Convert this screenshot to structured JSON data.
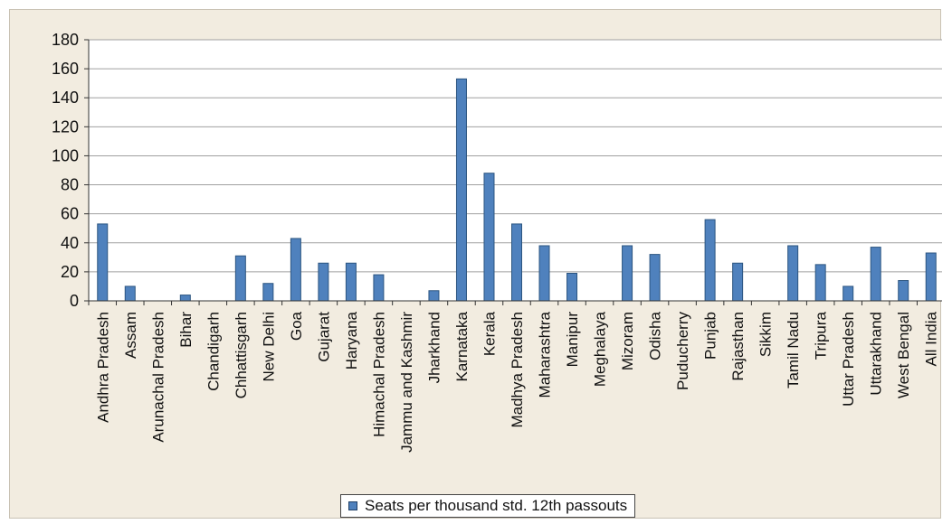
{
  "colors": {
    "bar_fill": "#4f81bd",
    "bar_stroke": "#2c5580",
    "plot_background": "#ffffff",
    "chart_background": "#f2ece0",
    "gridline": "#a0a0a0",
    "axis": "#333333"
  },
  "chart_data": {
    "type": "bar",
    "title": "",
    "xlabel": "",
    "ylabel": "",
    "ylim": [
      0,
      180
    ],
    "yticks": [
      0,
      20,
      40,
      60,
      80,
      100,
      120,
      140,
      160,
      180
    ],
    "grid": true,
    "legend_position": "bottom",
    "categories": [
      "Andhra Pradesh",
      "Assam",
      "Arunachal Pradesh",
      "Bihar",
      "Chandigarh",
      "Chhattisgarh",
      "New Delhi",
      "Goa",
      "Gujarat",
      "Haryana",
      "Himachal Pradesh",
      "Jammu and Kashmir",
      "Jharkhand",
      "Karnataka",
      "Kerala",
      "Madhya Pradesh",
      "Maharashtra",
      "Manipur",
      "Meghalaya",
      "Mizoram",
      "Odisha",
      "Puducherry",
      "Punjab",
      "Rajasthan",
      "Sikkim",
      "Tamil Nadu",
      "Tripura",
      "Uttar Pradesh",
      "Uttarakhand",
      "West Bengal",
      "All India"
    ],
    "series": [
      {
        "name": "Seats per thousand std. 12th passouts",
        "values": [
          53,
          10,
          0,
          4,
          0,
          31,
          12,
          43,
          26,
          26,
          18,
          0,
          7,
          153,
          88,
          53,
          38,
          19,
          0,
          38,
          32,
          0,
          56,
          26,
          0,
          38,
          25,
          10,
          37,
          14,
          33
        ]
      }
    ]
  }
}
